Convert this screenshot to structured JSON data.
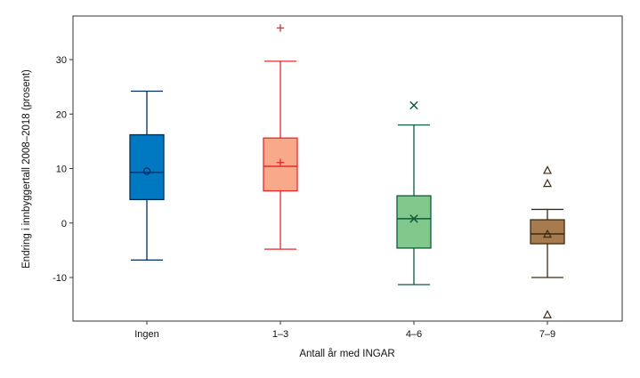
{
  "chart_data": {
    "type": "boxplot",
    "title": "",
    "xlabel": "Antall år med INGAR",
    "ylabel": "Endring i innbyggertall 2008–2018 (prosent)",
    "ylim": [
      -18,
      38
    ],
    "yticks": [
      -10,
      0,
      10,
      20,
      30
    ],
    "categories": [
      "Ingen",
      "1–3",
      "4–6",
      "7–9"
    ],
    "series": [
      {
        "name": "Ingen",
        "fill": "#0079c2",
        "stroke": "#002d5a",
        "mean_marker": "circle",
        "whisker_low": -6.8,
        "q1": 4.3,
        "median": 9.3,
        "q3": 16.2,
        "whisker_high": 24.2,
        "mean": 9.5,
        "outliers": []
      },
      {
        "name": "1–3",
        "fill": "#f7a98a",
        "stroke": "#e8282d",
        "mean_marker": "plus",
        "whisker_low": -4.8,
        "q1": 5.9,
        "median": 10.4,
        "q3": 15.6,
        "whisker_high": 29.7,
        "mean": 11.1,
        "outliers": [
          35.8
        ]
      },
      {
        "name": "4–6",
        "fill": "#82c88c",
        "stroke": "#0e5a3c",
        "mean_marker": "x",
        "whisker_low": -11.3,
        "q1": -4.6,
        "median": 0.8,
        "q3": 5.0,
        "whisker_high": 18.0,
        "mean": 0.8,
        "outliers": [
          21.6
        ]
      },
      {
        "name": "7–9",
        "fill": "#a67c4e",
        "stroke": "#3c2a14",
        "mean_marker": "triangle",
        "whisker_low": -10.0,
        "q1": -3.8,
        "median": -2.0,
        "q3": 0.6,
        "whisker_high": 2.5,
        "mean": -2.1,
        "outliers": [
          9.6,
          7.2,
          -16.9
        ]
      }
    ]
  }
}
